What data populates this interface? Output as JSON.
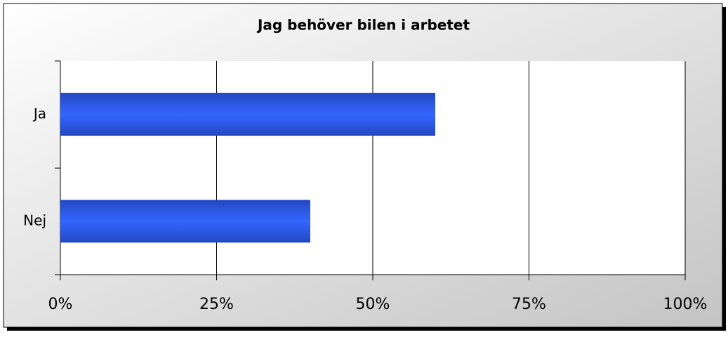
{
  "chart_data": {
    "type": "bar",
    "orientation": "horizontal",
    "title": "Jag behöver bilen i arbetet",
    "categories": [
      "Ja",
      "Nej"
    ],
    "values": [
      60,
      40
    ],
    "color": "#3366ff",
    "xlim": [
      0,
      100
    ],
    "xticks": [
      {
        "value": 0,
        "label": "0%"
      },
      {
        "value": 25,
        "label": "25%"
      },
      {
        "value": 50,
        "label": "50%"
      },
      {
        "value": 75,
        "label": "75%"
      },
      {
        "value": 100,
        "label": "100%"
      }
    ],
    "grid": true
  }
}
